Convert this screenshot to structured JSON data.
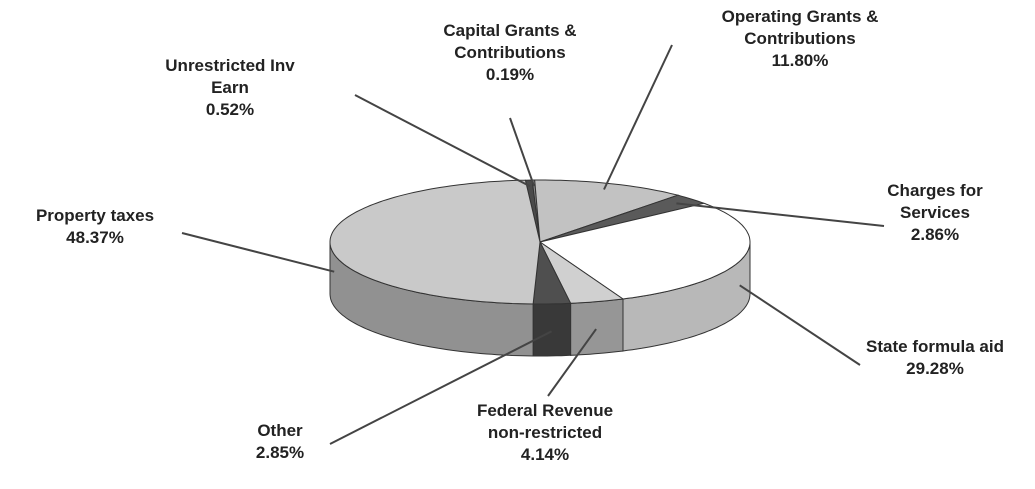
{
  "chart_data": {
    "type": "pie",
    "categories": [
      "Property taxes",
      "Unrestricted Inv Earn",
      "Capital Grants & Contributions",
      "Operating Grants & Contributions",
      "Charges for Services",
      "State formula aid",
      "Federal Revenue non-restricted",
      "Other"
    ],
    "values": [
      48.37,
      0.52,
      0.19,
      11.8,
      2.86,
      29.28,
      4.14,
      2.85
    ],
    "value_labels": [
      "48.37%",
      "0.52%",
      "0.19%",
      "11.80%",
      "2.86%",
      "29.28%",
      "4.14%",
      "2.85%"
    ],
    "colors": [
      "#c9c9c9",
      "#4a4a4a",
      "#8a8a8a",
      "#c2c2c2",
      "#5a5a5a",
      "#ffffff",
      "#d0d0d0",
      "#4f4f4f"
    ]
  }
}
